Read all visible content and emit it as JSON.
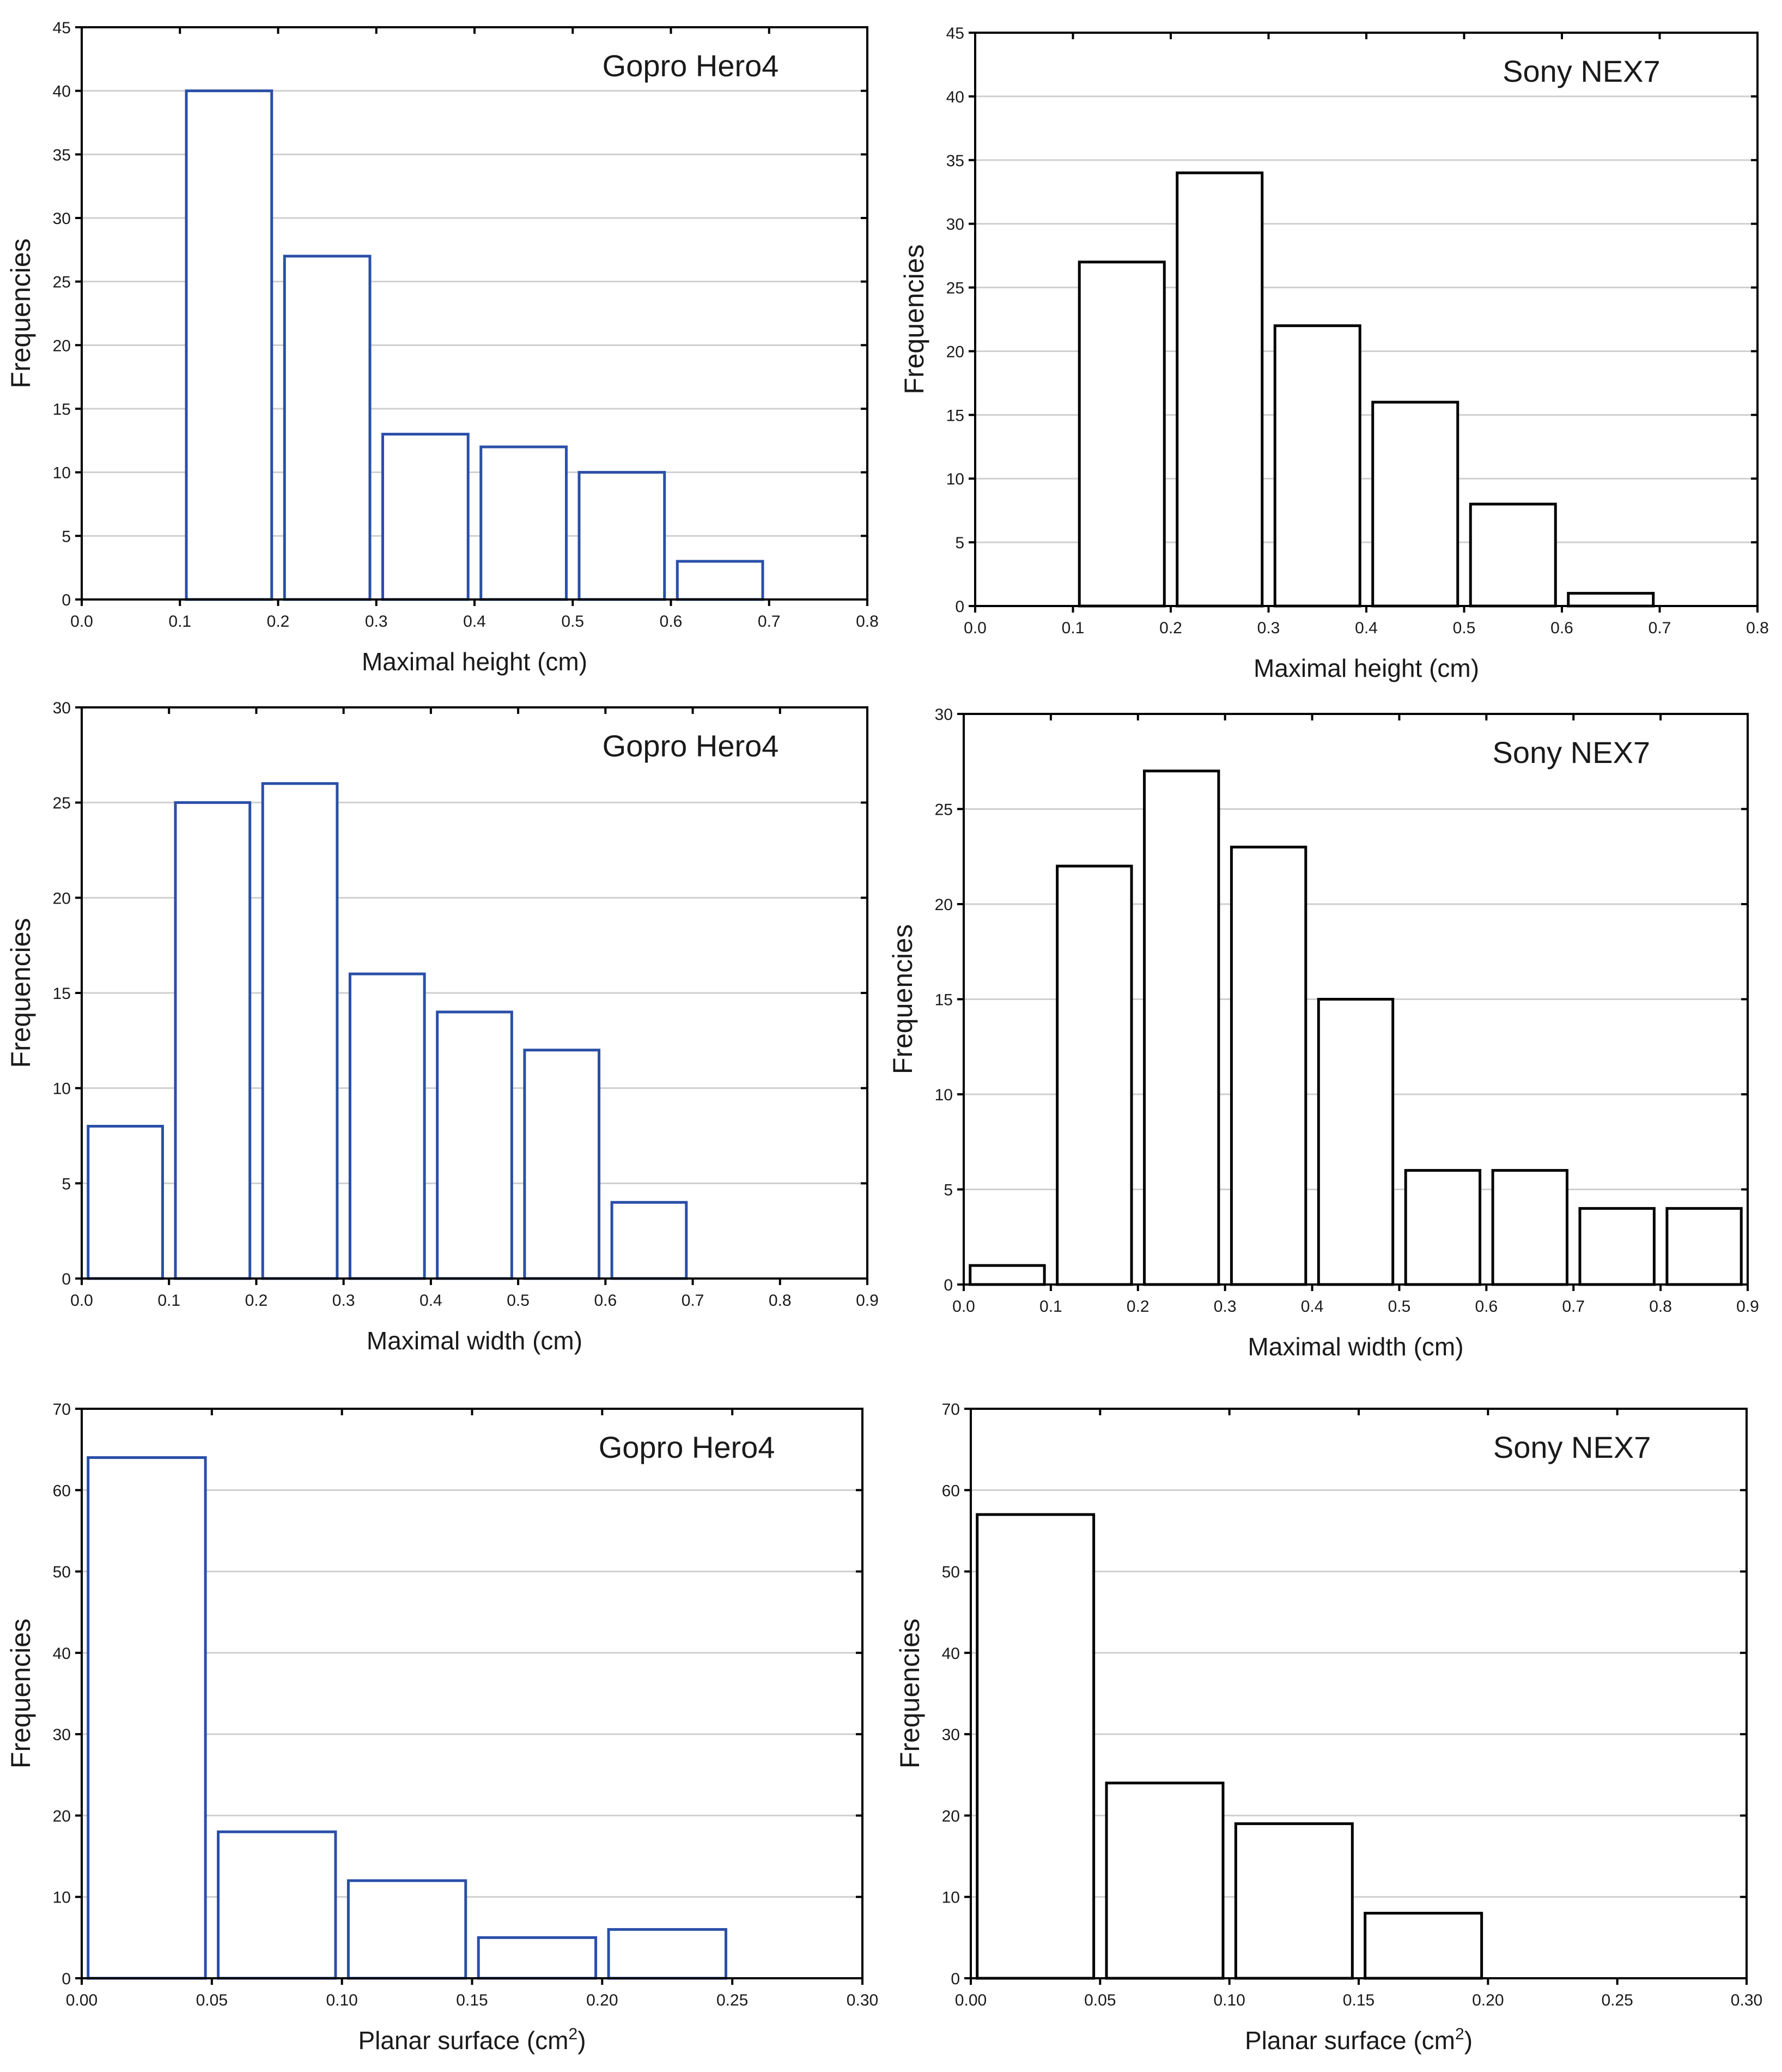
{
  "figure": "Histograms of gesture dimensions",
  "colors": {
    "gopro_bars": "#2a4fa8",
    "sony_bars": "#000000",
    "grid": "#cfcfcf",
    "frame": "#000000"
  },
  "chart_data": [
    {
      "id": "gopro-height",
      "type": "bar",
      "title": "Gopro Hero4",
      "xlabel": "Maximal height (cm)",
      "ylabel": "Frequencies",
      "xlim": [
        0,
        0.8
      ],
      "xticks": [
        "0.0",
        "0.1",
        "0.2",
        "0.3",
        "0.4",
        "0.5",
        "0.6",
        "0.7",
        "0.8"
      ],
      "ylim": [
        0,
        45
      ],
      "yticks": [
        "0",
        "5",
        "10",
        "15",
        "20",
        "25",
        "30",
        "35",
        "40",
        "45"
      ],
      "bins": [
        [
          0.1,
          0.2
        ],
        [
          0.2,
          0.3
        ],
        [
          0.3,
          0.4
        ],
        [
          0.4,
          0.5
        ],
        [
          0.5,
          0.6
        ],
        [
          0.6,
          0.7
        ]
      ],
      "values": [
        40,
        27,
        13,
        12,
        10,
        3
      ],
      "grid": true
    },
    {
      "id": "sony-height",
      "type": "bar",
      "title": "Sony NEX7",
      "xlabel": "Maximal height (cm)",
      "ylabel": "Frequencies",
      "xlim": [
        0,
        0.8
      ],
      "xticks": [
        "0.0",
        "0.1",
        "0.2",
        "0.3",
        "0.4",
        "0.5",
        "0.6",
        "0.7",
        "0.8"
      ],
      "ylim": [
        0,
        45
      ],
      "yticks": [
        "0",
        "5",
        "10",
        "15",
        "20",
        "25",
        "30",
        "35",
        "40",
        "45"
      ],
      "bins": [
        [
          0.1,
          0.2
        ],
        [
          0.2,
          0.3
        ],
        [
          0.3,
          0.4
        ],
        [
          0.4,
          0.5
        ],
        [
          0.5,
          0.6
        ],
        [
          0.6,
          0.7
        ]
      ],
      "values": [
        27,
        34,
        22,
        16,
        8,
        1
      ],
      "grid": true
    },
    {
      "id": "gopro-width",
      "type": "bar",
      "title": "Gopro Hero4",
      "xlabel": "Maximal width (cm)",
      "ylabel": "Frequencies",
      "xlim": [
        0,
        0.9
      ],
      "xticks": [
        "0.0",
        "0.1",
        "0.2",
        "0.3",
        "0.4",
        "0.5",
        "0.6",
        "0.7",
        "0.8",
        "0.9"
      ],
      "ylim": [
        0,
        30
      ],
      "yticks": [
        "0",
        "5",
        "10",
        "15",
        "20",
        "25",
        "30"
      ],
      "bins": [
        [
          0.0,
          0.1
        ],
        [
          0.1,
          0.2
        ],
        [
          0.2,
          0.3
        ],
        [
          0.3,
          0.4
        ],
        [
          0.4,
          0.5
        ],
        [
          0.5,
          0.6
        ],
        [
          0.6,
          0.7
        ]
      ],
      "values": [
        8,
        25,
        26,
        16,
        14,
        12,
        4
      ],
      "grid": true
    },
    {
      "id": "sony-width",
      "type": "bar",
      "title": "Sony NEX7",
      "xlabel": "Maximal width (cm)",
      "ylabel": "Frequencies",
      "xlim": [
        0,
        0.9
      ],
      "xticks": [
        "0.0",
        "0.1",
        "0.2",
        "0.3",
        "0.4",
        "0.5",
        "0.6",
        "0.7",
        "0.8",
        "0.9"
      ],
      "ylim": [
        0,
        30
      ],
      "yticks": [
        "0",
        "5",
        "10",
        "15",
        "20",
        "25",
        "30"
      ],
      "bins": [
        [
          0.0,
          0.1
        ],
        [
          0.1,
          0.2
        ],
        [
          0.2,
          0.3
        ],
        [
          0.3,
          0.4
        ],
        [
          0.4,
          0.5
        ],
        [
          0.5,
          0.6
        ],
        [
          0.6,
          0.7
        ],
        [
          0.7,
          0.8
        ],
        [
          0.8,
          0.9
        ]
      ],
      "values": [
        1,
        22,
        27,
        23,
        15,
        6,
        6,
        4,
        4
      ],
      "grid": true
    },
    {
      "id": "gopro-surface",
      "type": "bar",
      "title": "Gopro Hero4",
      "xlabel": "Planar surface (cm",
      "xlabel_sup": "2",
      "xlabel_end": ")",
      "ylabel": "Frequencies",
      "xlim": [
        0,
        0.3
      ],
      "xticks": [
        "0.00",
        "0.05",
        "0.10",
        "0.15",
        "0.20",
        "0.25",
        "0.30"
      ],
      "ylim": [
        0,
        70
      ],
      "yticks": [
        "0",
        "10",
        "20",
        "30",
        "40",
        "50",
        "60",
        "70"
      ],
      "bins": [
        [
          0.0,
          0.05
        ],
        [
          0.05,
          0.1
        ],
        [
          0.1,
          0.15
        ],
        [
          0.15,
          0.2
        ],
        [
          0.2,
          0.25
        ]
      ],
      "values": [
        64,
        18,
        12,
        5,
        6
      ],
      "grid": true
    },
    {
      "id": "sony-surface",
      "type": "bar",
      "title": "Sony NEX7",
      "xlabel": "Planar surface (cm",
      "xlabel_sup": "2",
      "xlabel_end": ")",
      "ylabel": "Frequencies",
      "xlim": [
        0,
        0.3
      ],
      "xticks": [
        "0.00",
        "0.05",
        "0.10",
        "0.15",
        "0.20",
        "0.25",
        "0.30"
      ],
      "ylim": [
        0,
        70
      ],
      "yticks": [
        "0",
        "10",
        "20",
        "30",
        "40",
        "50",
        "60",
        "70"
      ],
      "bins": [
        [
          0.0,
          0.05
        ],
        [
          0.05,
          0.1
        ],
        [
          0.1,
          0.15
        ],
        [
          0.15,
          0.2
        ]
      ],
      "values": [
        57,
        24,
        19,
        8
      ],
      "grid": true
    }
  ]
}
